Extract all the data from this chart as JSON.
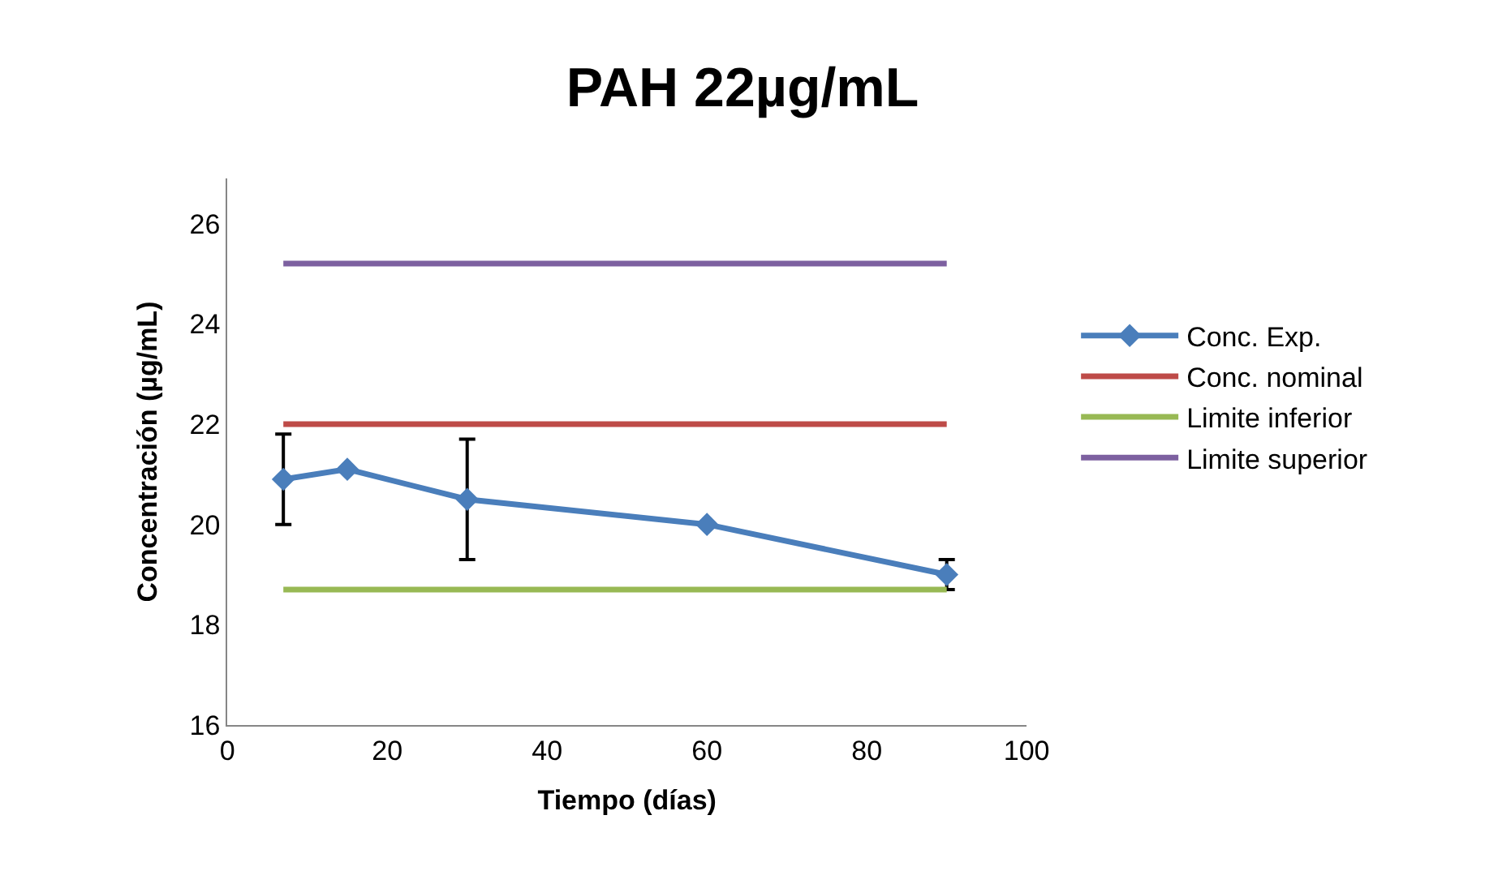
{
  "chart_data": {
    "type": "line",
    "title": "PAH 22µg/mL",
    "xlabel": "Tiempo (días)",
    "ylabel": "Concentración (µg/mL)",
    "xlim": [
      0,
      100
    ],
    "xticks": [
      0,
      20,
      40,
      60,
      80,
      100
    ],
    "ylim": [
      16,
      26.9
    ],
    "yticks": [
      16,
      18,
      20,
      22,
      24,
      26
    ],
    "legend": "right",
    "series": [
      {
        "name": "Conc. Exp.",
        "color": "#4a7ebb",
        "marker": "diamond",
        "x": [
          7,
          15,
          30,
          60,
          90
        ],
        "values": [
          20.9,
          21.1,
          20.5,
          20.0,
          19.0
        ],
        "errors": [
          0.9,
          null,
          1.2,
          null,
          0.3
        ]
      },
      {
        "name": "Conc. nominal",
        "color": "#be4b48",
        "marker": "none",
        "x": [
          7,
          90
        ],
        "values": [
          22.0,
          22.0
        ]
      },
      {
        "name": "Limite inferior",
        "color": "#98b954",
        "marker": "none",
        "x": [
          7,
          90
        ],
        "values": [
          18.7,
          18.7
        ]
      },
      {
        "name": "Limite superior",
        "color": "#7d60a0",
        "marker": "none",
        "x": [
          7,
          90
        ],
        "values": [
          25.2,
          25.2
        ]
      }
    ]
  }
}
